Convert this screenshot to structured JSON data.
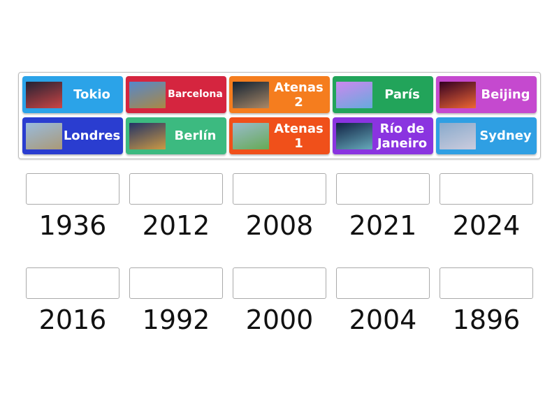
{
  "tiles": [
    {
      "label": "Tokio",
      "color": "#2ba3e8",
      "image": "tokyo-stadium-photo"
    },
    {
      "label": "Barcelona",
      "color": "#d5253f",
      "image": "sagrada-familia-photo"
    },
    {
      "label": "Atenas 2",
      "color": "#f57d1e",
      "image": "parthenon-night-photo"
    },
    {
      "label": "París",
      "color": "#22a45a",
      "image": "eiffel-tower-photo"
    },
    {
      "label": "Beijing",
      "color": "#c549cf",
      "image": "forbidden-city-photo"
    },
    {
      "label": "Londres",
      "color": "#2a3dd0",
      "image": "tower-bridge-photo"
    },
    {
      "label": "Berlín",
      "color": "#3cba80",
      "image": "brandenburg-gate-photo"
    },
    {
      "label": "Atenas 1",
      "color": "#f0501a",
      "image": "acropolis-day-photo"
    },
    {
      "label": "Río de Janeiro",
      "color": "#8a34e0",
      "image": "cristo-redentor-photo"
    },
    {
      "label": "Sydney",
      "color": "#2f9fe3",
      "image": "sydney-opera-house-photo"
    }
  ],
  "years": [
    "1936",
    "2012",
    "2008",
    "2021",
    "2024",
    "2016",
    "1992",
    "2000",
    "2004",
    "1896"
  ]
}
